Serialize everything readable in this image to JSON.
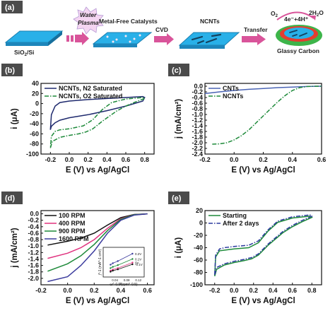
{
  "panel_labels": [
    "(a)",
    "(b)",
    "(c)",
    "(d)",
    "(e)"
  ],
  "colors": {
    "panel_label_bg": "#4b4b4b",
    "substrate": "#29b0e8",
    "arrow": "#d9549a",
    "n2_curve": "#1f2a6e",
    "o2_curve": "#1e8a3a",
    "cnt_curve": "#4a64b4",
    "ncnt_curve": "#1e8a3a",
    "rpm_100": "#111111",
    "rpm_400": "#e0337f",
    "rpm_900": "#1e8a3a",
    "rpm_1600": "#3d3d9e",
    "starting_curve": "#1e8a3a",
    "after_curve": "#2b3a9e"
  },
  "schematic": {
    "water_plasma": "Water\nPlasma",
    "substrate_label": "SiO2/Si",
    "metal_free": "Metal-Free Catalysts",
    "cvd": "CVD",
    "ncnts": "NCNTs",
    "transfer": "Transfer",
    "reaction": "4e⁻+4H⁺",
    "o2": "O2",
    "h2o": "2H2O",
    "glassy_carbon": "Glassy Carbon",
    "icons": [
      "star-burst-icon",
      "chevron-arrow-icon",
      "flat-arrow-icon",
      "curved-arrow-icon",
      "electrode-disk-icon"
    ]
  },
  "chart_data": [
    {
      "id": "b",
      "type": "line",
      "xlabel": "E (V) vs Ag/AgCl",
      "ylabel": "i (μA)",
      "xlim": [
        -0.3,
        0.9
      ],
      "ylim": [
        -100,
        40
      ],
      "xticks": [
        "-0.2",
        "0.0",
        "0.2",
        "0.4",
        "0.6",
        "0.8"
      ],
      "yticks": [
        "-100",
        "-80",
        "-60",
        "-40",
        "-20",
        "0",
        "20",
        "40"
      ],
      "legend": "top-left",
      "series": [
        {
          "name": "NCNTs, N2 Saturated",
          "style": "solid",
          "x": [
            -0.2,
            -0.19,
            -0.15,
            -0.1,
            0.0,
            0.2,
            0.4,
            0.6,
            0.78,
            0.8,
            0.78,
            0.6,
            0.4,
            0.2,
            0.0,
            -0.1,
            -0.15,
            -0.19,
            -0.2
          ],
          "y": [
            -52,
            -45,
            -38,
            -33,
            -28,
            -22,
            -14,
            -5,
            5,
            12,
            14,
            12,
            10,
            8,
            5,
            2,
            -5,
            -22,
            -52
          ]
        },
        {
          "name": "NCNTs, O2 Saturated",
          "style": "dash-dot",
          "x": [
            -0.2,
            -0.18,
            -0.1,
            0.0,
            0.1,
            0.18,
            0.25,
            0.35,
            0.5,
            0.6,
            0.7,
            0.8,
            0.78,
            0.6,
            0.45,
            0.35,
            0.25,
            0.15,
            0.0,
            -0.1,
            -0.15,
            -0.19,
            -0.2
          ],
          "y": [
            -88,
            -75,
            -67,
            -63,
            -60,
            -56,
            -50,
            -35,
            -15,
            -5,
            3,
            10,
            12,
            9,
            2,
            -12,
            -32,
            -44,
            -50,
            -52,
            -55,
            -65,
            -88
          ]
        }
      ]
    },
    {
      "id": "c",
      "type": "line",
      "xlabel": "E (V) vs Ag/AgCl",
      "ylabel": "j (mA/cm²)",
      "xlim": [
        -0.2,
        0.6
      ],
      "ylim": [
        -2.4,
        0.1
      ],
      "xticks": [
        "-0.2",
        "0.0",
        "0.2",
        "0.4",
        "0.6"
      ],
      "yticks": [
        "-2.4",
        "-2.2",
        "-2.0",
        "-1.8",
        "-1.6",
        "-1.4",
        "-1.2",
        "-1.0",
        "-0.8",
        "-0.6",
        "-0.4",
        "-0.2",
        "0.0"
      ],
      "legend": "top-left",
      "series": [
        {
          "name": "CNTs",
          "style": "solid",
          "x": [
            -0.2,
            -0.1,
            0.0,
            0.1,
            0.2,
            0.3,
            0.4,
            0.5,
            0.6
          ],
          "y": [
            -0.26,
            -0.2,
            -0.15,
            -0.11,
            -0.08,
            -0.05,
            -0.03,
            -0.01,
            0.0
          ]
        },
        {
          "name": "NCNTs",
          "style": "dash-dot",
          "x": [
            -0.15,
            -0.1,
            -0.05,
            0.0,
            0.05,
            0.1,
            0.15,
            0.2,
            0.25,
            0.3,
            0.35,
            0.4,
            0.45,
            0.5,
            0.55,
            0.6
          ],
          "y": [
            -2.05,
            -2.04,
            -2.0,
            -1.9,
            -1.75,
            -1.55,
            -1.3,
            -1.05,
            -0.8,
            -0.55,
            -0.33,
            -0.15,
            -0.05,
            -0.01,
            0.0,
            0.0
          ]
        }
      ]
    },
    {
      "id": "d",
      "type": "line",
      "xlabel": "E (V) vs Ag/AgCl",
      "ylabel": "j (mA/cm²)",
      "xlim": [
        -0.2,
        0.65
      ],
      "ylim": [
        -2.2,
        0.1
      ],
      "xticks": [
        "-0.2",
        "0.0",
        "0.2",
        "0.4",
        "0.6"
      ],
      "yticks": [
        "-2.0",
        "-1.8",
        "-1.6",
        "-1.4",
        "-1.2",
        "-1.0",
        "-0.8",
        "-0.6",
        "-0.4",
        "-0.2",
        "0.0"
      ],
      "legend": "top-left",
      "series": [
        {
          "name": "100 RPM",
          "x": [
            -0.15,
            0.0,
            0.1,
            0.2,
            0.3,
            0.4,
            0.5,
            0.6
          ],
          "y": [
            -0.97,
            -0.85,
            -0.75,
            -0.6,
            -0.35,
            -0.12,
            -0.02,
            0.0
          ]
        },
        {
          "name": "400 RPM",
          "x": [
            -0.15,
            0.0,
            0.1,
            0.2,
            0.3,
            0.4,
            0.5,
            0.6
          ],
          "y": [
            -1.38,
            -1.22,
            -1.05,
            -0.8,
            -0.45,
            -0.15,
            -0.03,
            0.0
          ]
        },
        {
          "name": "900 RPM",
          "x": [
            -0.15,
            0.0,
            0.1,
            0.2,
            0.3,
            0.4,
            0.5,
            0.6
          ],
          "y": [
            -1.78,
            -1.55,
            -1.3,
            -0.95,
            -0.52,
            -0.17,
            -0.03,
            0.0
          ]
        },
        {
          "name": "1600 RPM",
          "x": [
            -0.15,
            0.0,
            0.1,
            0.2,
            0.3,
            0.4,
            0.5,
            0.6
          ],
          "y": [
            -2.1,
            -1.95,
            -1.6,
            -1.15,
            -0.6,
            -0.2,
            -0.04,
            0.0
          ]
        }
      ],
      "inset": {
        "type": "scatter",
        "xlabel": "ω^-0.5 (rpm^-0.5)",
        "ylabel": "j^-1 (mA^-1 cm²)",
        "xticks": [
          "0.04",
          "0.08",
          "0.12"
        ],
        "series": [
          {
            "name": "0.2V",
            "x": [
              0.025,
              0.033,
              0.05,
              0.1
            ],
            "y": [
              0.78,
              0.85,
              0.95,
              1.3
            ]
          },
          {
            "name": "0.1V",
            "x": [
              0.025,
              0.033,
              0.05,
              0.1
            ],
            "y": [
              0.62,
              0.68,
              0.76,
              1.05
            ]
          },
          {
            "name": "0V",
            "x": [
              0.025,
              0.033,
              0.05,
              0.1
            ],
            "y": [
              0.5,
              0.55,
              0.62,
              0.88
            ]
          },
          {
            "name": "-0.1V",
            "x": [
              0.025,
              0.033,
              0.05,
              0.1
            ],
            "y": [
              0.45,
              0.5,
              0.56,
              0.8
            ]
          }
        ]
      }
    },
    {
      "id": "e",
      "type": "line",
      "xlabel": "E (V) vs Ag/AgCl",
      "ylabel": "i (μA)",
      "xlim": [
        -0.3,
        0.9
      ],
      "ylim": [
        -100,
        20
      ],
      "xticks": [
        "-0.2",
        "0.0",
        "0.2",
        "0.4",
        "0.6",
        "0.8"
      ],
      "yticks": [
        "-100",
        "-80",
        "-60",
        "-40",
        "-20",
        "0",
        "20"
      ],
      "legend": "top-left",
      "series": [
        {
          "name": "Starting",
          "style": "solid",
          "x": [
            -0.2,
            -0.18,
            -0.1,
            0.0,
            0.1,
            0.18,
            0.25,
            0.35,
            0.5,
            0.6,
            0.7,
            0.8,
            0.78,
            0.6,
            0.45,
            0.35,
            0.25,
            0.15,
            0.0,
            -0.1,
            -0.15,
            -0.19,
            -0.2
          ],
          "y": [
            -86,
            -75,
            -68,
            -64,
            -61,
            -58,
            -52,
            -36,
            -16,
            -6,
            2,
            9,
            11,
            8,
            1,
            -13,
            -32,
            -40,
            -42,
            -44,
            -45,
            -55,
            -86
          ]
        },
        {
          "name": "After 2 days",
          "style": "dash-dot",
          "x": [
            -0.2,
            -0.18,
            -0.1,
            0.0,
            0.1,
            0.18,
            0.25,
            0.35,
            0.5,
            0.6,
            0.7,
            0.8,
            0.78,
            0.6,
            0.45,
            0.35,
            0.25,
            0.15,
            0.0,
            -0.1,
            -0.15,
            -0.19,
            -0.2
          ],
          "y": [
            -84,
            -72,
            -66,
            -62,
            -59,
            -56,
            -50,
            -34,
            -14,
            -4,
            4,
            11,
            13,
            10,
            3,
            -11,
            -29,
            -36,
            -38,
            -40,
            -42,
            -52,
            -84
          ]
        }
      ]
    }
  ]
}
